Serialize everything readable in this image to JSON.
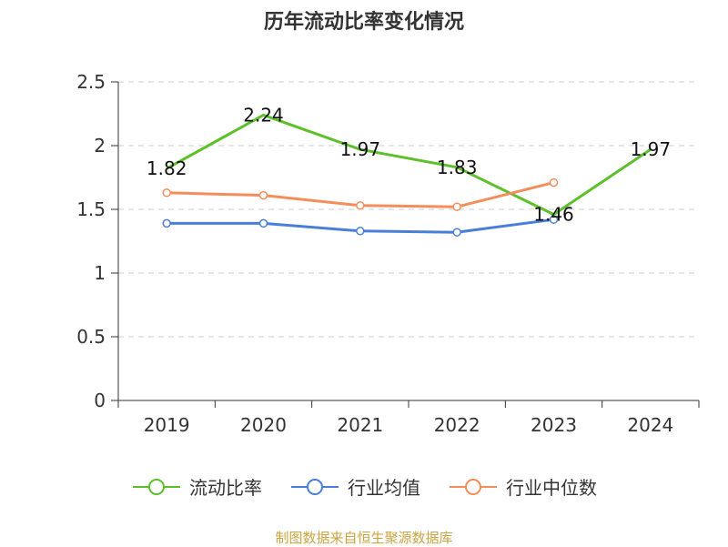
{
  "title": "历年流动比率变化情况",
  "source": "制图数据来自恒生聚源数据库",
  "chart_data": {
    "type": "line",
    "categories": [
      "2019",
      "2020",
      "2021",
      "2022",
      "2023",
      "2024"
    ],
    "ylim": [
      0,
      2.5
    ],
    "yticks": [
      "0",
      "0.5",
      "1",
      "1.5",
      "2",
      "2.5"
    ],
    "grid": true,
    "legend_position": "bottom",
    "series": [
      {
        "name": "流动比率",
        "color": "#5cc02a",
        "values": [
          1.82,
          2.24,
          1.97,
          1.83,
          1.46,
          1.97
        ],
        "labels": [
          "1.82",
          "2.24",
          "1.97",
          "1.83",
          "1.46",
          "1.97"
        ],
        "show_markers": false
      },
      {
        "name": "行业均值",
        "color": "#4a7fd8",
        "values": [
          1.39,
          1.39,
          1.33,
          1.32,
          1.42,
          null
        ],
        "labels": null,
        "show_markers": true
      },
      {
        "name": "行业中位数",
        "color": "#f58d5b",
        "values": [
          1.63,
          1.61,
          1.53,
          1.52,
          1.71,
          null
        ],
        "labels": null,
        "show_markers": true
      }
    ]
  }
}
